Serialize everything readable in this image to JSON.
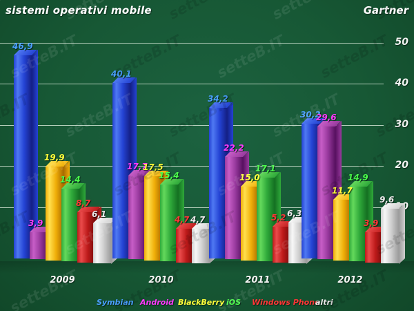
{
  "header": {
    "title": "sistemi operativi mobile",
    "source": "Gartner"
  },
  "watermark": {
    "text": "setteB.IT"
  },
  "colors": {
    "background": "#175835",
    "gridline": "#dfeedf",
    "axis_text": "#ffffff"
  },
  "chart_data": {
    "type": "bar",
    "title": "sistemi operativi mobile",
    "source": "Gartner",
    "xlabel": "",
    "ylabel": "",
    "ylim": [
      0,
      52
    ],
    "y_ticks": [
      50,
      40,
      30,
      20,
      10
    ],
    "grid": true,
    "legend_position": "bottom",
    "decimal_separator": ",",
    "categories": [
      "2009",
      "2010",
      "2011",
      "2012"
    ],
    "series": [
      {
        "name": "Symbian",
        "values": [
          46.9,
          40.1,
          34.2,
          30.2
        ],
        "labels": [
          "46,9",
          "40,1",
          "34,2",
          "30,2"
        ],
        "colors": {
          "light": "#4f79f2",
          "base": "#2443d4",
          "dark": "#141f85",
          "label": "#4aa0ff"
        }
      },
      {
        "name": "Android",
        "values": [
          3.9,
          17.7,
          22.2,
          29.6
        ],
        "labels": [
          "3,9",
          "17,7",
          "22,2",
          "29,6"
        ],
        "colors": {
          "light": "#c75ec7",
          "base": "#993a9e",
          "dark": "#571060",
          "label": "#ff3bff"
        }
      },
      {
        "name": "BlackBerry",
        "values": [
          19.9,
          17.5,
          15.0,
          11.7
        ],
        "labels": [
          "19,9",
          "17,5",
          "15,0",
          "11,7"
        ],
        "colors": {
          "light": "#ffdf4e",
          "base": "#f0ae08",
          "dark": "#a86a00",
          "label": "#ffff3a"
        }
      },
      {
        "name": "iOS",
        "values": [
          14.4,
          15.4,
          17.1,
          14.9
        ],
        "labels": [
          "14,4",
          "15,4",
          "17,1",
          "14,9"
        ],
        "colors": {
          "light": "#64d95c",
          "base": "#2fa93a",
          "dark": "#147022",
          "label": "#4bff4b"
        }
      },
      {
        "name": "Windows Phone",
        "values": [
          8.7,
          4.7,
          5.2,
          3.9
        ],
        "labels": [
          "8,7",
          "4,7",
          "5,2",
          "3,9"
        ],
        "colors": {
          "light": "#ea4b4b",
          "base": "#bd1a1a",
          "dark": "#770b0b",
          "label": "#ff3636"
        }
      },
      {
        "name": "altri",
        "values": [
          6.1,
          4.7,
          6.3,
          9.6
        ],
        "labels": [
          "6,1",
          "4,7",
          "6,3",
          "9,6"
        ],
        "colors": {
          "light": "#f7f7f7",
          "base": "#cfcfcf",
          "dark": "#9b9b9b",
          "label": "#eaeaea"
        }
      }
    ]
  }
}
